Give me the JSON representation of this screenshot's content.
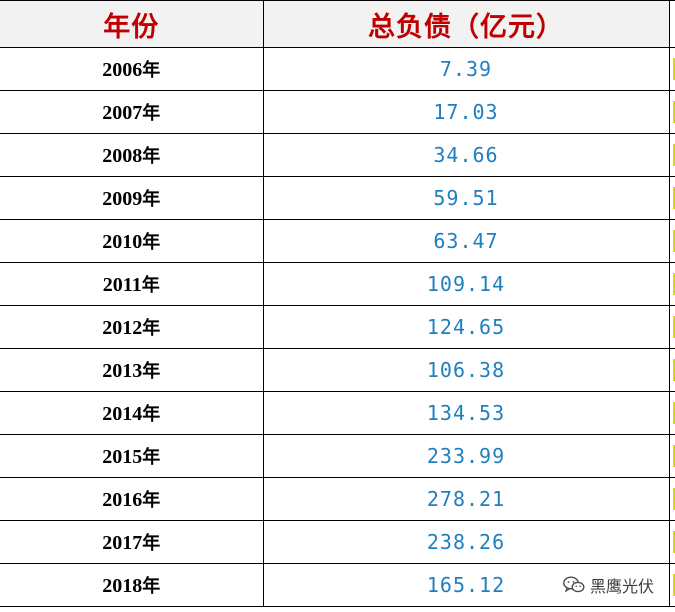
{
  "header": {
    "year_label": "年份",
    "debt_label": "总负债（亿元）"
  },
  "rows": [
    {
      "year": "2006",
      "debt": "7.39"
    },
    {
      "year": "2007",
      "debt": "17.03"
    },
    {
      "year": "2008",
      "debt": "34.66"
    },
    {
      "year": "2009",
      "debt": "59.51"
    },
    {
      "year": "2010",
      "debt": "63.47"
    },
    {
      "year": "2011",
      "debt": "109.14"
    },
    {
      "year": "2012",
      "debt": "124.65"
    },
    {
      "year": "2013",
      "debt": "106.38"
    },
    {
      "year": "2014",
      "debt": "134.53"
    },
    {
      "year": "2015",
      "debt": "233.99"
    },
    {
      "year": "2016",
      "debt": "278.21"
    },
    {
      "year": "2017",
      "debt": "238.26"
    },
    {
      "year": "2018",
      "debt": "165.12"
    }
  ],
  "year_suffix": "年",
  "watermark": {
    "icon": "wechat-icon",
    "text": "黑鹰光伏"
  },
  "colors": {
    "header_text": "#c00000",
    "value_text": "#1f7fbf",
    "header_bg": "#f2f2f2",
    "grid_line": "#000000"
  }
}
